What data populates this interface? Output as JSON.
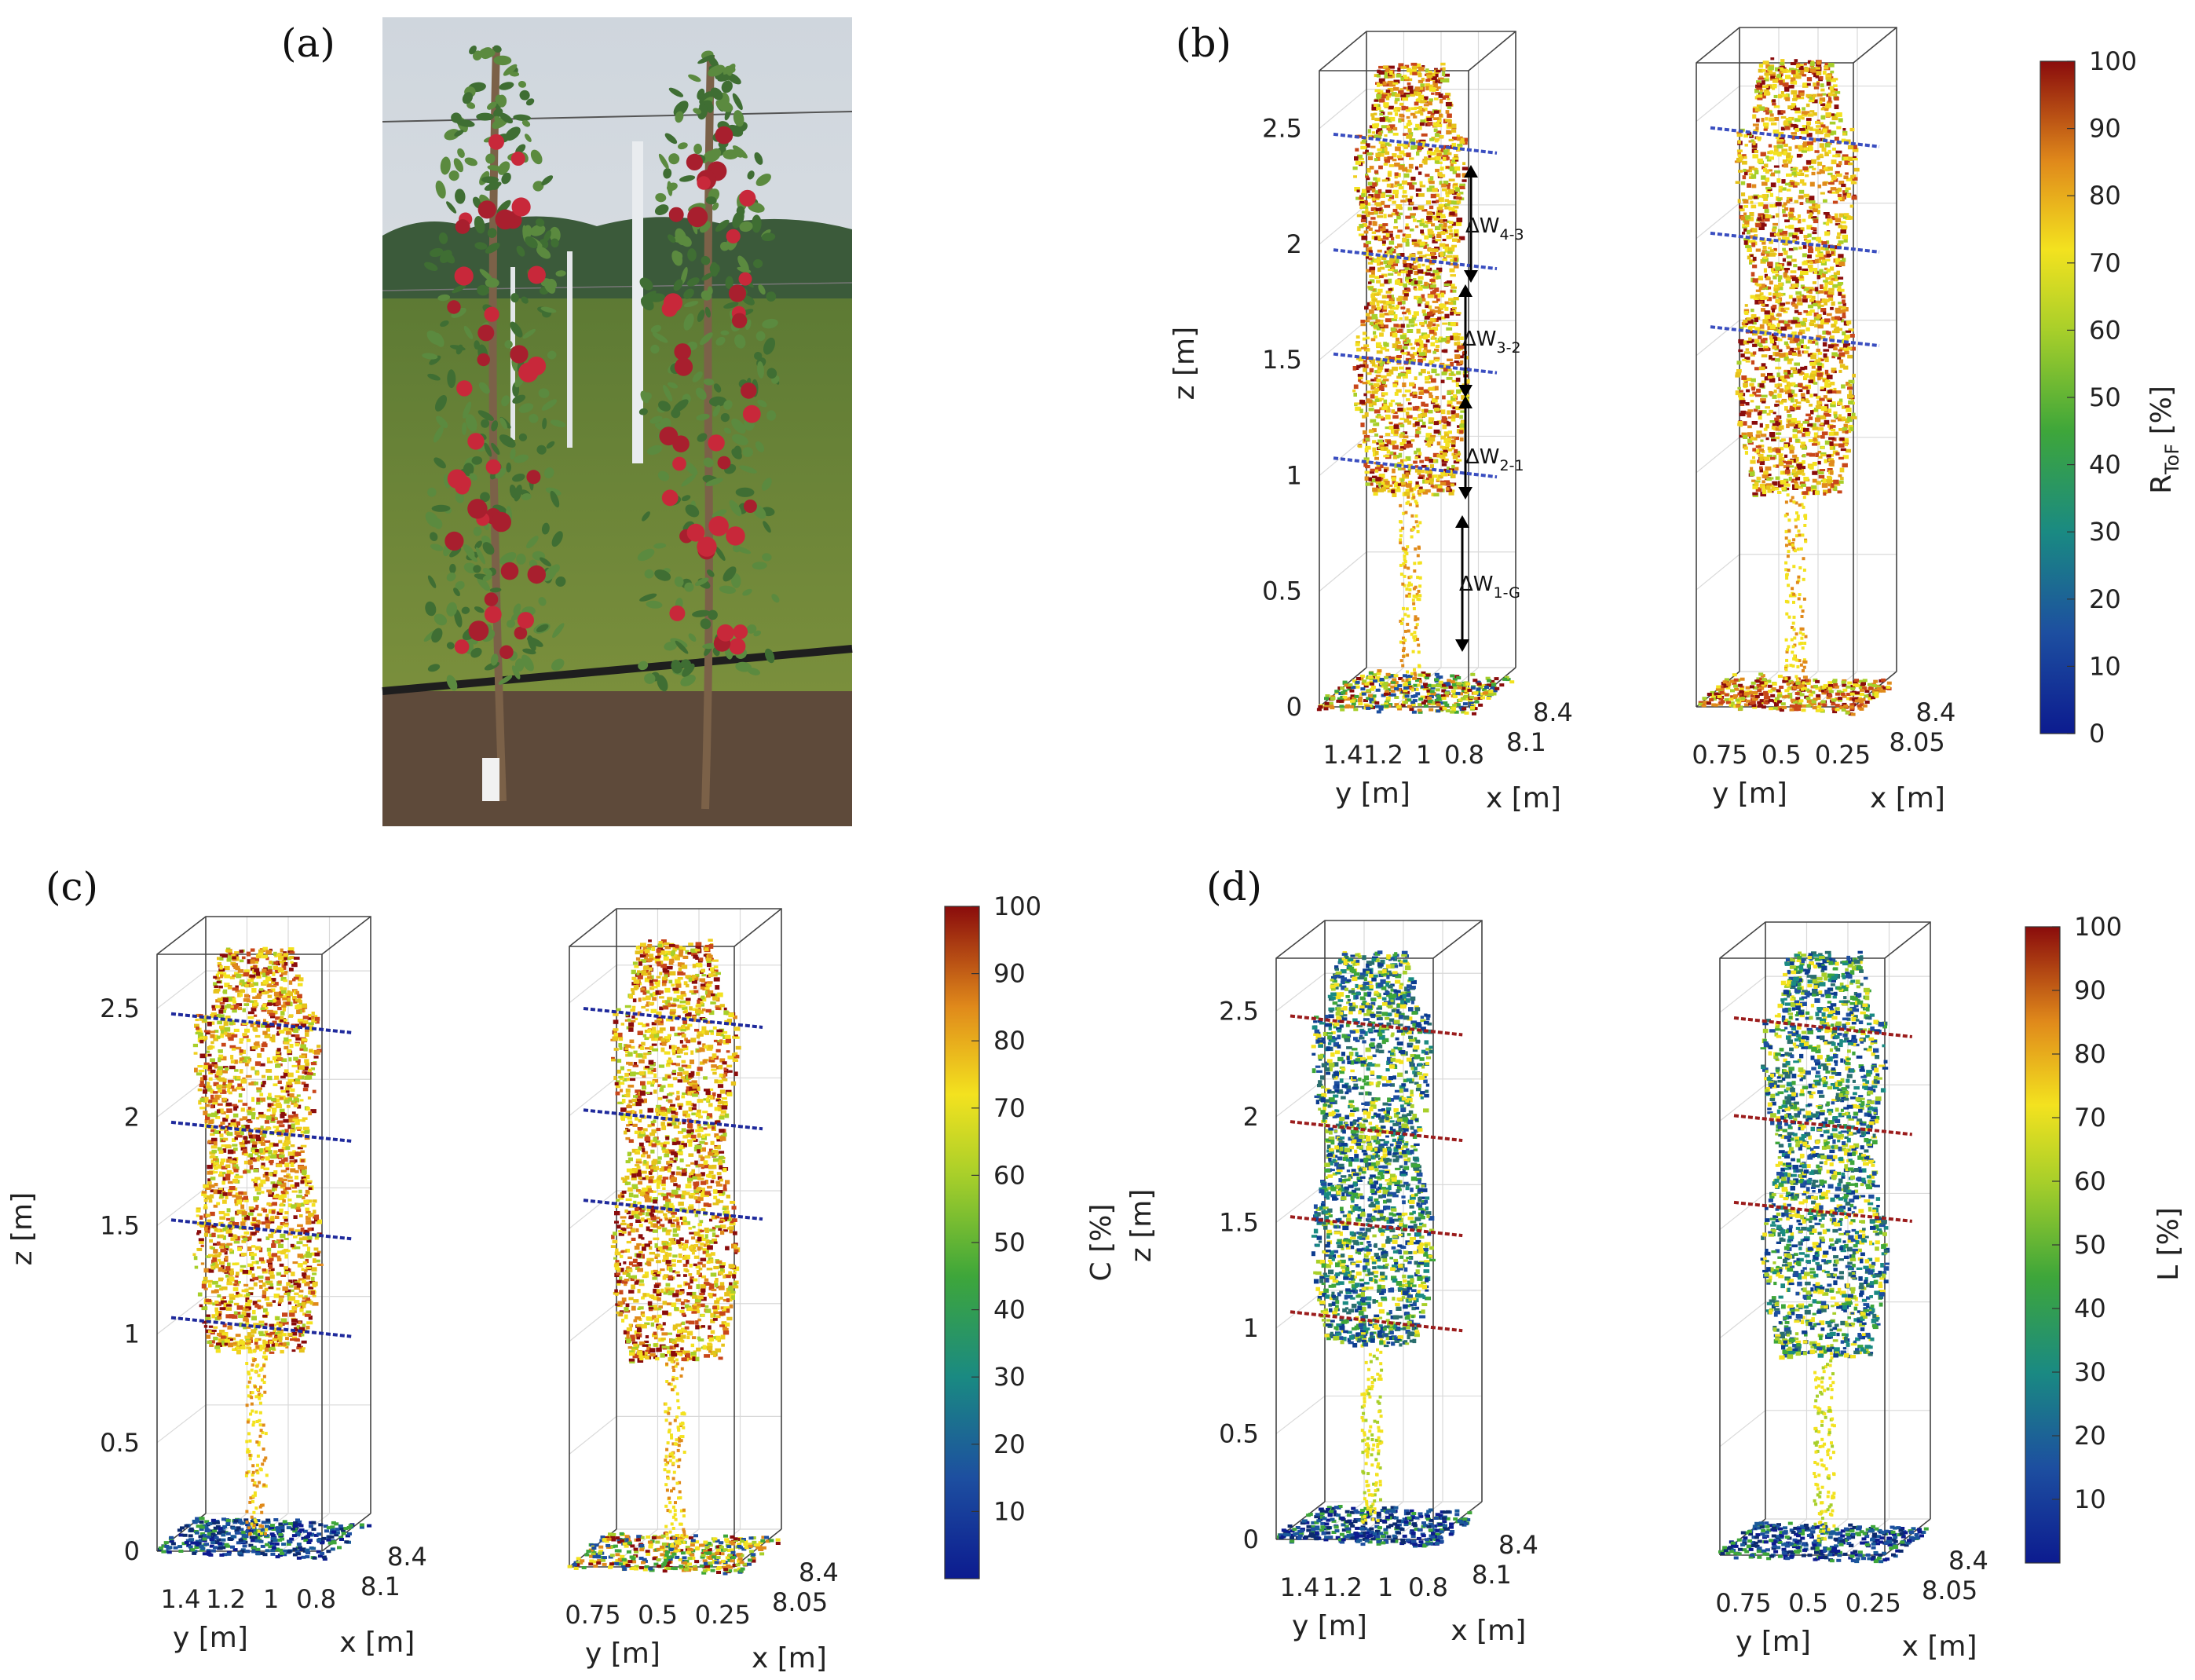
{
  "panels": [
    {
      "id": "a",
      "label": "(a)",
      "type": "photo",
      "photo_colors": {
        "sky": "#d8dde2",
        "treeline": "#3b5a3a",
        "grass": "#6f8c3a",
        "soil": "#5e4a3a",
        "apple": "#c8283a",
        "leaf": "#3f6e33"
      }
    },
    {
      "id": "b",
      "label": "(b)",
      "colorbar_label": "R_ToF [%]",
      "colorbar_label_main": "R",
      "colorbar_label_sub": "ToF",
      "colorbar_label_tail": " [%]",
      "colormap": "jet-like (blue-green-yellow-red)",
      "colorbar_ticks": [
        "0",
        "10",
        "20",
        "30",
        "40",
        "50",
        "60",
        "70",
        "80",
        "90",
        "100"
      ],
      "annotations": [
        "ΔW4-3",
        "ΔW3-2",
        "ΔW2-1",
        "ΔW1-G"
      ],
      "annotation_parts": [
        {
          "main": "ΔW",
          "sub": "4-3"
        },
        {
          "main": "ΔW",
          "sub": "3-2"
        },
        {
          "main": "ΔW",
          "sub": "2-1"
        },
        {
          "main": "ΔW",
          "sub": "1-G"
        }
      ],
      "subplots": [
        {
          "zlabel": "z [m]",
          "ylabel": "y [m]",
          "xlabel": "x [m]",
          "z_ticks": [
            "0",
            "0.5",
            "1",
            "1.5",
            "2",
            "2.5"
          ],
          "y_ticks": [
            "1.4",
            "1.2",
            "1",
            "0.8"
          ],
          "x_ticks": [
            "8.1",
            "8.4"
          ],
          "dominant": "hot",
          "wire_color": "#3a4ec0"
        },
        {
          "zlabel": "",
          "ylabel": "y [m]",
          "xlabel": "x [m]",
          "z_ticks": [],
          "y_ticks": [
            "0.75",
            "0.5",
            "0.25"
          ],
          "x_ticks": [
            "8.05",
            "8.4"
          ],
          "dominant": "hot",
          "wire_color": "#3a4ec0"
        }
      ]
    },
    {
      "id": "c",
      "label": "(c)",
      "colorbar_label": "C [%]",
      "colorbar_ticks": [
        "10",
        "20",
        "30",
        "40",
        "50",
        "60",
        "70",
        "80",
        "90",
        "100"
      ],
      "subplots": [
        {
          "zlabel": "z [m]",
          "ylabel": "y [m]",
          "xlabel": "x [m]",
          "z_ticks": [
            "0",
            "0.5",
            "1",
            "1.5",
            "2",
            "2.5"
          ],
          "y_ticks": [
            "1.4",
            "1.2",
            "1",
            "0.8"
          ],
          "x_ticks": [
            "8.1",
            "8.4"
          ],
          "dominant": "hot",
          "wire_color": "#1f2a9c"
        },
        {
          "zlabel": "",
          "ylabel": "y [m]",
          "xlabel": "x [m]",
          "z_ticks": [],
          "y_ticks": [
            "0.75",
            "0.5",
            "0.25"
          ],
          "x_ticks": [
            "8.05",
            "8.4"
          ],
          "dominant": "hot",
          "wire_color": "#1f2a9c"
        }
      ]
    },
    {
      "id": "d",
      "label": "(d)",
      "colorbar_label": "L [%]",
      "colorbar_ticks": [
        "10",
        "20",
        "30",
        "40",
        "50",
        "60",
        "70",
        "80",
        "90",
        "100"
      ],
      "subplots": [
        {
          "zlabel": "z [m]",
          "ylabel": "y [m]",
          "xlabel": "x [m]",
          "z_ticks": [
            "0",
            "0.5",
            "1",
            "1.5",
            "2",
            "2.5"
          ],
          "y_ticks": [
            "1.4",
            "1.2",
            "1",
            "0.8"
          ],
          "x_ticks": [
            "8.1",
            "8.4"
          ],
          "dominant": "cool",
          "wire_color": "#9b1c1c"
        },
        {
          "zlabel": "",
          "ylabel": "y [m]",
          "xlabel": "x [m]",
          "z_ticks": [],
          "y_ticks": [
            "0.75",
            "0.5",
            "0.25"
          ],
          "x_ticks": [
            "8.05",
            "8.4"
          ],
          "dominant": "cool",
          "wire_color": "#9b1c1c"
        }
      ]
    }
  ],
  "chart_data": [
    {
      "type": "scatter",
      "title": "",
      "description": "3D point clouds of two apple trees colored by R_ToF",
      "zlabel": "z [m]",
      "ylabel": "y [m]",
      "xlabel": "x [m]",
      "zlim": [
        0,
        2.7
      ],
      "colorbar": {
        "label": "R_ToF [%]",
        "range": [
          0,
          100
        ]
      }
    },
    {
      "type": "scatter",
      "title": "",
      "description": "3D point clouds colored by C",
      "zlabel": "z [m]",
      "ylabel": "y [m]",
      "xlabel": "x [m]",
      "zlim": [
        0,
        2.7
      ],
      "colorbar": {
        "label": "C [%]",
        "range": [
          0,
          100
        ]
      }
    },
    {
      "type": "scatter",
      "title": "",
      "description": "3D point clouds colored by L",
      "zlabel": "z [m]",
      "ylabel": "y [m]",
      "xlabel": "x [m]",
      "zlim": [
        0,
        2.7
      ],
      "colorbar": {
        "label": "L [%]",
        "range": [
          0,
          100
        ]
      }
    }
  ]
}
